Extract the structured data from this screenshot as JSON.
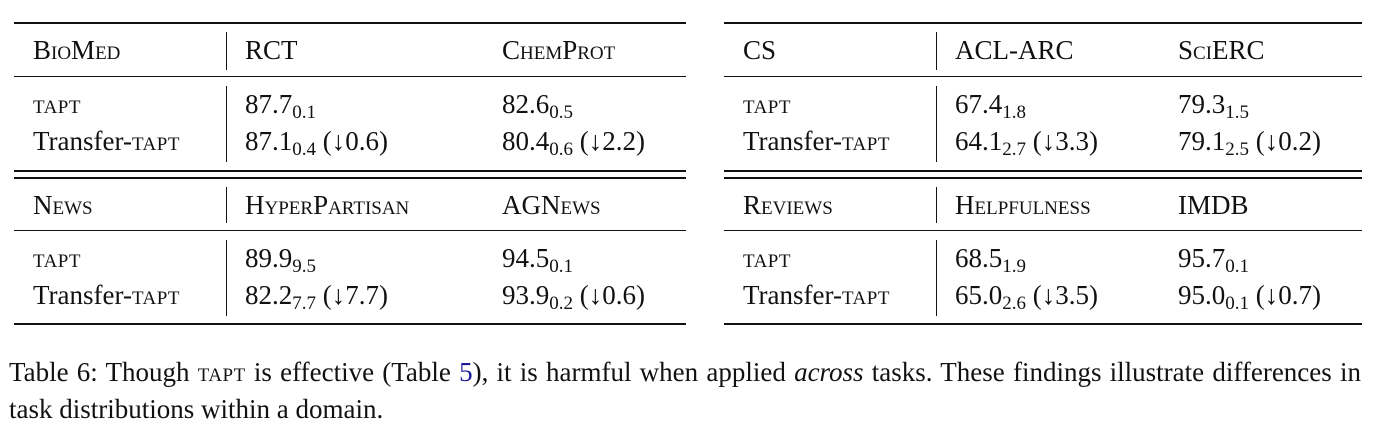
{
  "tables": [
    {
      "blocks": [
        {
          "domain": "BioMed",
          "task1": "RCT",
          "task2": "ChemProt",
          "rows": [
            {
              "prefix": "",
              "method": "tapt",
              "v1": {
                "mean": "87.7",
                "std": "0.1",
                "delta": ""
              },
              "v2": {
                "mean": "82.6",
                "std": "0.5",
                "delta": ""
              }
            },
            {
              "prefix": "Transfer-",
              "method": "tapt",
              "v1": {
                "mean": "87.1",
                "std": "0.4",
                "delta": "(↓0.6)"
              },
              "v2": {
                "mean": "80.4",
                "std": "0.6",
                "delta": "(↓2.2)"
              }
            }
          ]
        },
        {
          "domain": "News",
          "task1": "HyperPartisan",
          "task2": "AGNews",
          "rows": [
            {
              "prefix": "",
              "method": "tapt",
              "v1": {
                "mean": "89.9",
                "std": "9.5",
                "delta": ""
              },
              "v2": {
                "mean": "94.5",
                "std": "0.1",
                "delta": ""
              }
            },
            {
              "prefix": "Transfer-",
              "method": "tapt",
              "v1": {
                "mean": "82.2",
                "std": "7.7",
                "delta": "(↓7.7)"
              },
              "v2": {
                "mean": "93.9",
                "std": "0.2",
                "delta": "(↓0.6)"
              }
            }
          ]
        }
      ]
    },
    {
      "blocks": [
        {
          "domain": "CS",
          "task1": "ACL-ARC",
          "task2": "SciERC",
          "rows": [
            {
              "prefix": "",
              "method": "tapt",
              "v1": {
                "mean": "67.4",
                "std": "1.8",
                "delta": ""
              },
              "v2": {
                "mean": "79.3",
                "std": "1.5",
                "delta": ""
              }
            },
            {
              "prefix": "Transfer-",
              "method": "tapt",
              "v1": {
                "mean": "64.1",
                "std": "2.7",
                "delta": "(↓3.3)"
              },
              "v2": {
                "mean": "79.1",
                "std": "2.5",
                "delta": "(↓0.2)"
              }
            }
          ]
        },
        {
          "domain": "Reviews",
          "task1": "Helpfulness",
          "task2": "IMDB",
          "rows": [
            {
              "prefix": "",
              "method": "tapt",
              "v1": {
                "mean": "68.5",
                "std": "1.9",
                "delta": ""
              },
              "v2": {
                "mean": "95.7",
                "std": "0.1",
                "delta": ""
              }
            },
            {
              "prefix": "Transfer-",
              "method": "tapt",
              "v1": {
                "mean": "65.0",
                "std": "2.6",
                "delta": "(↓3.5)"
              },
              "v2": {
                "mean": "95.0",
                "std": "0.1",
                "delta": "(↓0.7)"
              }
            }
          ]
        }
      ]
    }
  ],
  "caption": {
    "label": "Table 6:",
    "t1": " Though ",
    "tapt": "tapt",
    "t2": " is effective (Table ",
    "ref": "5",
    "t3": "), it is harmful when applied ",
    "em": "across",
    "t4": " tasks.  These findings illustrate differences in task distributions within a domain."
  }
}
